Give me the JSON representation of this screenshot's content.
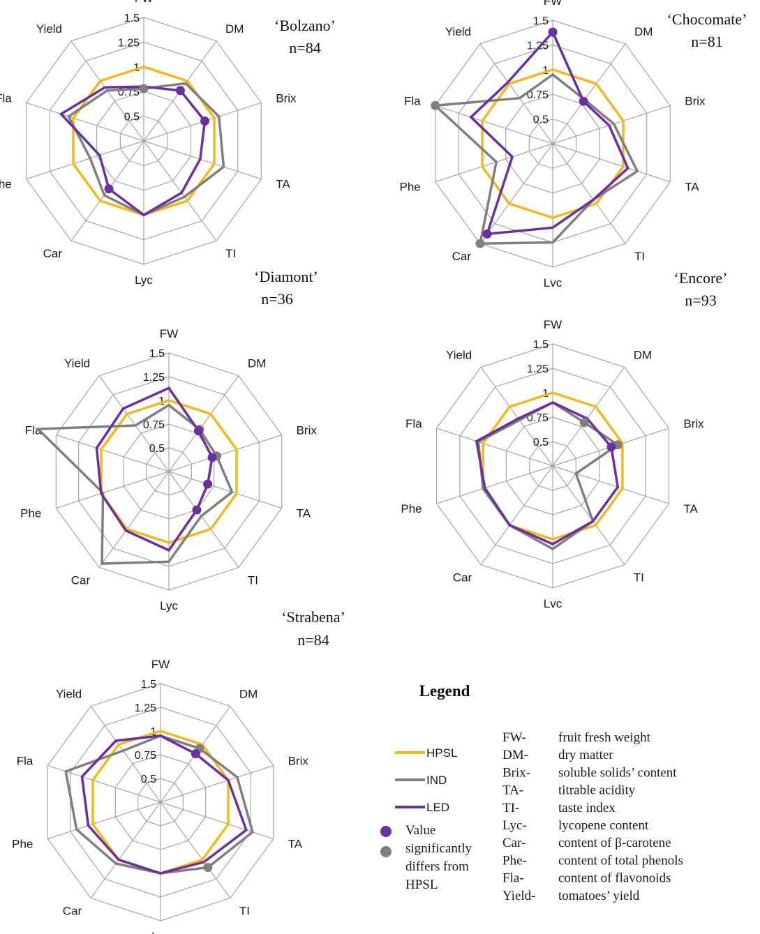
{
  "chart_data": [
    {
      "type": "radar",
      "title": "‘Bolzano’",
      "subtitle": "n=84",
      "axes": [
        "FW",
        "DM",
        "Brix",
        "TA",
        "TI",
        "Lyc",
        "Car",
        "Phe",
        "Fla",
        "Yield"
      ],
      "ticks": [
        "0.5",
        "0.75",
        "1",
        "1.25",
        "1.5"
      ],
      "rmin": 0.25,
      "rmax": 1.5,
      "series": [
        {
          "name": "HPSL",
          "values": [
            1,
            1,
            1,
            1,
            1,
            1,
            1,
            1,
            1,
            1
          ],
          "sig": []
        },
        {
          "name": "IND",
          "values": [
            0.78,
            0.97,
            1.05,
            1.1,
            0.95,
            1.0,
            0.93,
            0.82,
            1.05,
            0.88
          ],
          "sig": [
            0
          ]
        },
        {
          "name": "LED",
          "values": [
            0.8,
            0.88,
            0.9,
            0.85,
            0.9,
            1.0,
            0.85,
            0.72,
            1.13,
            0.92
          ],
          "sig": [
            1,
            2,
            6
          ]
        }
      ]
    },
    {
      "type": "radar",
      "title": "‘Chocomate’",
      "subtitle": "n=81",
      "axes": [
        "FW",
        "DM",
        "Brix",
        "TA",
        "TI",
        "Lvc",
        "Car",
        "Phe",
        "Fla",
        "Yield"
      ],
      "ticks": [
        "0.5",
        "0.75",
        "1",
        "1.25",
        "1.5"
      ],
      "rmin": 0.25,
      "rmax": 1.5,
      "series": [
        {
          "name": "HPSL",
          "values": [
            1,
            1,
            1,
            1,
            1,
            1,
            1,
            1,
            1,
            1
          ],
          "sig": []
        },
        {
          "name": "IND",
          "values": [
            0.95,
            0.8,
            0.9,
            1.15,
            0.95,
            1.25,
            1.5,
            0.85,
            1.5,
            0.82
          ],
          "sig": [
            6,
            8
          ]
        },
        {
          "name": "LED",
          "values": [
            1.38,
            0.78,
            0.85,
            1.05,
            0.95,
            1.1,
            1.38,
            0.68,
            1.12,
            1.02
          ],
          "sig": [
            0,
            1,
            6
          ]
        }
      ]
    },
    {
      "type": "radar",
      "title": "‘Diamont’",
      "subtitle": "n=36",
      "axes": [
        "FW",
        "DM",
        "Brix",
        "TA",
        "TI",
        "Lyc",
        "Car",
        "Phe",
        "Fla",
        "Yield"
      ],
      "ticks": [
        "0.5",
        "0.75",
        "1",
        "1.25",
        "1.5"
      ],
      "rmin": 0.25,
      "rmax": 1.5,
      "series": [
        {
          "name": "HPSL",
          "values": [
            1,
            1,
            1,
            1,
            1,
            1,
            1,
            1,
            1,
            1
          ],
          "sig": []
        },
        {
          "name": "IND",
          "values": [
            0.95,
            0.8,
            0.78,
            0.95,
            0.83,
            1.2,
            1.45,
            0.98,
            1.7,
            0.85
          ],
          "sig": [
            1,
            2
          ]
        },
        {
          "name": "LED",
          "values": [
            1.13,
            0.78,
            0.73,
            0.68,
            0.75,
            1.08,
            1.02,
            1.0,
            1.05,
            1.07
          ],
          "sig": [
            1,
            2,
            3,
            4
          ]
        }
      ]
    },
    {
      "type": "radar",
      "title": "‘Encore’",
      "subtitle": "n=93",
      "axes": [
        "FW",
        "DM",
        "Brix",
        "TA",
        "TI",
        "Lvc",
        "Car",
        "Phe",
        "Fla",
        "Yield"
      ],
      "ticks": [
        "0.5",
        "0.75",
        "1",
        "1.25",
        "1.5"
      ],
      "rmin": 0.25,
      "rmax": 1.5,
      "series": [
        {
          "name": "HPSL",
          "values": [
            1,
            1,
            1,
            1,
            1,
            1,
            1,
            1,
            1,
            1
          ],
          "sig": []
        },
        {
          "name": "IND",
          "values": [
            0.9,
            0.8,
            0.95,
            0.5,
            0.95,
            1.1,
            1.0,
            1.0,
            1.05,
            0.83
          ],
          "sig": [
            1,
            2
          ]
        },
        {
          "name": "LED",
          "values": [
            0.9,
            0.85,
            0.88,
            0.95,
            0.95,
            1.05,
            1.0,
            0.98,
            1.07,
            0.85
          ],
          "sig": [
            2
          ]
        }
      ]
    },
    {
      "type": "radar",
      "title": "‘Strabena’",
      "subtitle": "n=84",
      "axes": [
        "FW",
        "DM",
        "Brix",
        "TA",
        "TI",
        "Lyc",
        "Car",
        "Phe",
        "Fla",
        "Yield"
      ],
      "ticks": [
        "0.5",
        "0.75",
        "1",
        "1.25",
        "1.5"
      ],
      "rmin": 0.25,
      "rmax": 1.5,
      "series": [
        {
          "name": "HPSL",
          "values": [
            1,
            1,
            1,
            1,
            1,
            1,
            1,
            1,
            1,
            1
          ],
          "sig": []
        },
        {
          "name": "IND",
          "values": [
            0.95,
            0.95,
            1.1,
            1.27,
            1.1,
            1.0,
            1.05,
            1.18,
            1.3,
            0.92
          ],
          "sig": [
            1,
            4
          ]
        },
        {
          "name": "LED",
          "values": [
            0.95,
            0.88,
            1.0,
            1.2,
            1.03,
            1.0,
            1.0,
            1.05,
            1.12,
            1.05
          ],
          "sig": [
            1
          ]
        }
      ]
    }
  ],
  "series_colors": {
    "HPSL": "#f5b81c",
    "IND": "#7f7f7f",
    "LED": "#6a2fa0",
    "grid": "#a6a6a6"
  },
  "legend": {
    "title": "Legend",
    "series": [
      "HPSL",
      "IND",
      "LED"
    ],
    "dot_note": [
      "Value",
      "significantly",
      "differs from",
      "HPSL"
    ],
    "abbreviations": [
      {
        "abbr": "FW-",
        "desc": "fruit fresh weight"
      },
      {
        "abbr": "DM-",
        "desc": "dry matter"
      },
      {
        "abbr": "Brix-",
        "desc": "soluble solids’ content"
      },
      {
        "abbr": "TA-",
        "desc": "titrable acidity"
      },
      {
        "abbr": "TI-",
        "desc": "taste index"
      },
      {
        "abbr": "Lyc-",
        "desc": "lycopene content"
      },
      {
        "abbr": "Car-",
        "desc": "content of β-carotene"
      },
      {
        "abbr": "Phe-",
        "desc": "content of total phenols"
      },
      {
        "abbr": "Fla-",
        "desc": "content of flavonoids"
      },
      {
        "abbr": "Yield-",
        "desc": "tomatoes’ yield"
      }
    ]
  }
}
